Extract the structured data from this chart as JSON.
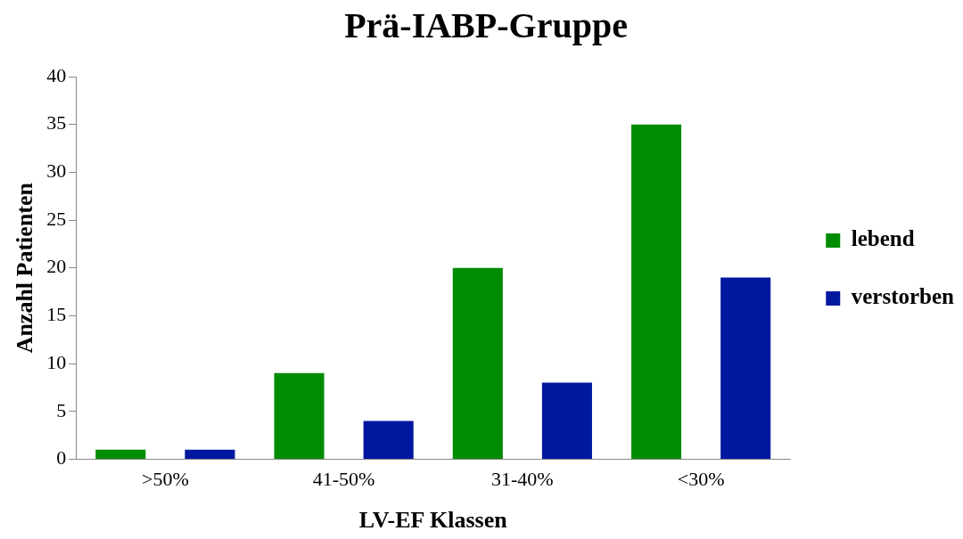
{
  "chart_data": {
    "type": "bar",
    "title": "Prä-IABP-Gruppe",
    "xlabel": "LV-EF Klassen",
    "ylabel": "Anzahl Patienten",
    "categories": [
      ">50%",
      "41-50%",
      "31-40%",
      "<30%"
    ],
    "series": [
      {
        "name": "lebend",
        "color": "#008c00",
        "values": [
          1,
          9,
          20,
          35
        ]
      },
      {
        "name": "verstorben",
        "color": "#0018a0",
        "values": [
          1,
          4,
          8,
          19
        ]
      }
    ],
    "ylim": [
      0,
      40
    ],
    "yticks": [
      0,
      5,
      10,
      15,
      20,
      25,
      30,
      35,
      40
    ],
    "grid": false,
    "legend": "right"
  }
}
